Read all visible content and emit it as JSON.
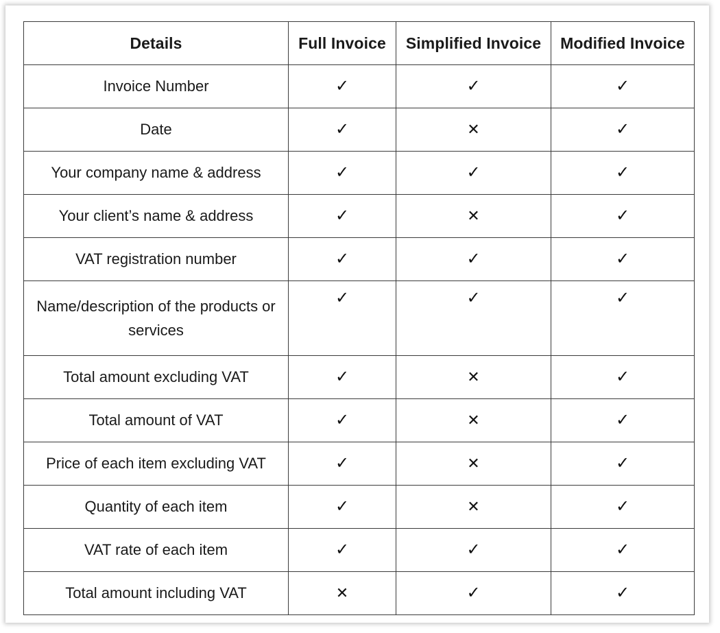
{
  "table": {
    "headers": [
      "Details",
      "Full Invoice",
      "Simplified Invoice",
      "Modified Invoice"
    ],
    "rows": [
      {
        "detail": "Invoice Number",
        "full": "✓",
        "simplified": "✓",
        "modified": "✓"
      },
      {
        "detail": "Date",
        "full": "✓",
        "simplified": "✕",
        "modified": "✓"
      },
      {
        "detail": "Your company name & address",
        "full": "✓",
        "simplified": "✓",
        "modified": "✓"
      },
      {
        "detail": "Your client’s name & address",
        "full": "✓",
        "simplified": "✕",
        "modified": "✓"
      },
      {
        "detail": "VAT registration number",
        "full": "✓",
        "simplified": "✓",
        "modified": "✓"
      },
      {
        "detail": "Name/description of the products or services",
        "full": "✓",
        "simplified": "✓",
        "modified": "✓"
      },
      {
        "detail": "Total amount excluding VAT",
        "full": "✓",
        "simplified": "✕",
        "modified": "✓"
      },
      {
        "detail": "Total amount of VAT",
        "full": "✓",
        "simplified": "✕",
        "modified": "✓"
      },
      {
        "detail": "Price of each item excluding VAT",
        "full": "✓",
        "simplified": "✕",
        "modified": "✓"
      },
      {
        "detail": "Quantity of each item",
        "full": "✓",
        "simplified": "✕",
        "modified": "✓"
      },
      {
        "detail": "VAT rate of each item",
        "full": "✓",
        "simplified": "✓",
        "modified": "✓"
      },
      {
        "detail": "Total amount including VAT",
        "full": "✕",
        "simplified": "✓",
        "modified": "✓"
      }
    ]
  }
}
